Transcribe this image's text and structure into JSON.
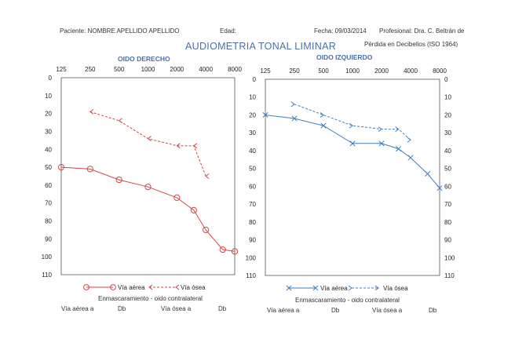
{
  "header": {
    "patient": "Paciente: NOMBRE APELLIDO APELLIDO",
    "age": "Edad:",
    "date": "Fecha:  09/03/2014",
    "professional": "Profesional:   Dra. C. Beltrán de",
    "unit": "Pérdida en Decibelios (ISO 1964)"
  },
  "title": "AUDIOMETRIA TONAL LIMINAR",
  "colors": {
    "right": "#d04848",
    "left": "#3f7fc0"
  },
  "chart_data": [
    {
      "type": "line",
      "title": "OIDO DERECHO",
      "x": [
        125,
        250,
        500,
        1000,
        2000,
        4000,
        8000
      ],
      "x_ticks": [
        "125",
        "250",
        "500",
        "1000",
        "2000",
        "4000",
        "8000"
      ],
      "y_ticks": [
        "0",
        "10",
        "20",
        "30",
        "40",
        "50",
        "60",
        "70",
        "80",
        "90",
        "100",
        "110"
      ],
      "ylim": [
        0,
        110
      ],
      "y_inverted": true,
      "series": [
        {
          "name": "Vía aérea",
          "style": "solid",
          "marker": "circle",
          "points": [
            [
              125,
              50
            ],
            [
              250,
              51
            ],
            [
              500,
              57
            ],
            [
              1000,
              61
            ],
            [
              2000,
              67
            ],
            [
              3000,
              74
            ],
            [
              4000,
              85
            ],
            [
              6000,
              96
            ],
            [
              8000,
              97
            ]
          ]
        },
        {
          "name": "Vía ósea",
          "style": "dashed",
          "marker": "arrow-left",
          "points": [
            [
              250,
              19
            ],
            [
              500,
              24
            ],
            [
              1000,
              34
            ],
            [
              2000,
              38
            ],
            [
              3000,
              38
            ],
            [
              4000,
              55
            ]
          ]
        }
      ],
      "legend": [
        "Vía aérea",
        "Vía ósea"
      ],
      "masking": "Enmascaramiento - oido contralateral",
      "footer": [
        "Vía aérea a",
        "Db",
        "Vía ósea a",
        "Db"
      ]
    },
    {
      "type": "line",
      "title": "OIDO IZQUIERDO",
      "x": [
        125,
        250,
        500,
        1000,
        2000,
        4000,
        8000
      ],
      "x_ticks": [
        "125",
        "250",
        "500",
        "1000",
        "2000",
        "4000",
        "8000"
      ],
      "y_ticks": [
        "0",
        "10",
        "20",
        "30",
        "40",
        "50",
        "60",
        "70",
        "80",
        "90",
        "100",
        "110"
      ],
      "ylim": [
        0,
        110
      ],
      "y_inverted": true,
      "series": [
        {
          "name": "Vía aérea",
          "style": "solid",
          "marker": "x",
          "points": [
            [
              125,
              20
            ],
            [
              250,
              22
            ],
            [
              500,
              26
            ],
            [
              1000,
              36
            ],
            [
              2000,
              36
            ],
            [
              3000,
              39
            ],
            [
              4000,
              44
            ],
            [
              6000,
              53
            ],
            [
              8000,
              61
            ]
          ]
        },
        {
          "name": "Vía ósea",
          "style": "dashed",
          "marker": "arrow-right",
          "points": [
            [
              250,
              14
            ],
            [
              500,
              20
            ],
            [
              1000,
              26
            ],
            [
              2000,
              28
            ],
            [
              3000,
              28
            ],
            [
              4000,
              34
            ]
          ]
        }
      ],
      "legend": [
        "Vía aérea",
        "Vía ósea"
      ],
      "masking": "Enmascaramiento - oido contralateral",
      "footer": [
        "Vía aérea a",
        "Db",
        "Vía ósea a",
        "Db"
      ]
    }
  ]
}
